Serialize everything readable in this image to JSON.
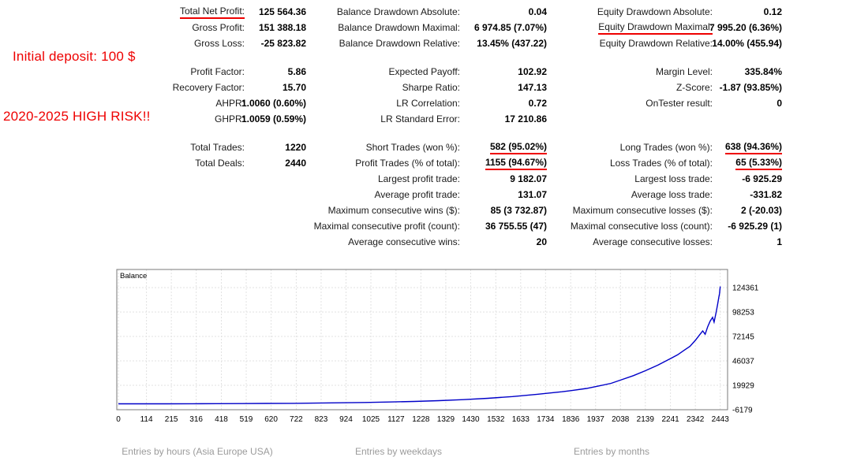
{
  "annotations": {
    "initial_deposit": "Initial deposit: 100 $",
    "risk_note": "2020-2025 HIGH RISK!!"
  },
  "stat_blocks": [
    {
      "rows": [
        [
          {
            "label": "Total Net Profit:",
            "value": "125 564.36",
            "ul": "label"
          },
          {
            "label": "Balance Drawdown Absolute:",
            "value": "0.04"
          },
          {
            "label": "Equity Drawdown Absolute:",
            "value": "0.12"
          }
        ],
        [
          {
            "label": "Gross Profit:",
            "value": "151 388.18"
          },
          {
            "label": "Balance Drawdown Maximal:",
            "value": "6 974.85 (7.07%)"
          },
          {
            "label": "Equity Drawdown Maximal:",
            "value": "7 995.20 (6.36%)",
            "ul": "label"
          }
        ],
        [
          {
            "label": "Gross Loss:",
            "value": "-25 823.82"
          },
          {
            "label": "Balance Drawdown Relative:",
            "value": "13.45% (437.22)"
          },
          {
            "label": "Equity Drawdown Relative:",
            "value": "14.00% (455.94)"
          }
        ]
      ]
    },
    {
      "rows": [
        [
          {
            "label": "Profit Factor:",
            "value": "5.86"
          },
          {
            "label": "Expected Payoff:",
            "value": "102.92"
          },
          {
            "label": "Margin Level:",
            "value": "335.84%"
          }
        ],
        [
          {
            "label": "Recovery Factor:",
            "value": "15.70"
          },
          {
            "label": "Sharpe Ratio:",
            "value": "147.13"
          },
          {
            "label": "Z-Score:",
            "value": "-1.87 (93.85%)"
          }
        ],
        [
          {
            "label": "AHPR:",
            "value": "1.0060 (0.60%)"
          },
          {
            "label": "LR Correlation:",
            "value": "0.72"
          },
          {
            "label": "OnTester result:",
            "value": "0"
          }
        ],
        [
          {
            "label": "GHPR:",
            "value": "1.0059 (0.59%)"
          },
          {
            "label": "LR Standard Error:",
            "value": "17 210.86"
          },
          null
        ]
      ]
    },
    {
      "rows": [
        [
          {
            "label": "Total Trades:",
            "value": "1220"
          },
          {
            "label": "Short Trades (won %):",
            "value": "582 (95.02%)",
            "ul": "value"
          },
          {
            "label": "Long Trades (won %):",
            "value": "638 (94.36%)",
            "ul": "value"
          }
        ],
        [
          {
            "label": "Total Deals:",
            "value": "2440"
          },
          {
            "label": "Profit Trades (% of total):",
            "value": "1155 (94.67%)",
            "ul": "value"
          },
          {
            "label": "Loss Trades (% of total):",
            "value": "65 (5.33%)",
            "ul": "value"
          }
        ],
        [
          null,
          {
            "label": "Largest profit trade:",
            "value": "9 182.07"
          },
          {
            "label": "Largest loss trade:",
            "value": "-6 925.29"
          }
        ],
        [
          null,
          {
            "label": "Average profit trade:",
            "value": "131.07"
          },
          {
            "label": "Average loss trade:",
            "value": "-331.82"
          }
        ],
        [
          null,
          {
            "label": "Maximum consecutive wins ($):",
            "value": "85 (3 732.87)"
          },
          {
            "label": "Maximum consecutive losses ($):",
            "value": "2 (-20.03)"
          }
        ],
        [
          null,
          {
            "label": "Maximal consecutive profit (count):",
            "value": "36 755.55 (47)"
          },
          {
            "label": "Maximal consecutive loss (count):",
            "value": "-6 925.29 (1)"
          }
        ],
        [
          null,
          {
            "label": "Average consecutive wins:",
            "value": "20"
          },
          {
            "label": "Average consecutive losses:",
            "value": "1"
          }
        ]
      ]
    }
  ],
  "chart_data": {
    "type": "line",
    "title": "Balance",
    "line_color": "#0000C8",
    "grid": true,
    "legend_position": "top-left-inside",
    "xlim": [
      0,
      2460
    ],
    "ylim": [
      -6179,
      143732
    ],
    "x_ticks": [
      0,
      114,
      215,
      316,
      418,
      519,
      620,
      722,
      823,
      924,
      1025,
      1127,
      1228,
      1329,
      1430,
      1532,
      1633,
      1734,
      1836,
      1937,
      2038,
      2139,
      2241,
      2342,
      2443
    ],
    "y_ticks": [
      124361,
      98253,
      72145,
      46037,
      19929,
      -6179
    ],
    "series": [
      {
        "name": "Balance",
        "points": [
          [
            0,
            100
          ],
          [
            100,
            130
          ],
          [
            200,
            170
          ],
          [
            300,
            230
          ],
          [
            400,
            300
          ],
          [
            500,
            400
          ],
          [
            600,
            520
          ],
          [
            700,
            680
          ],
          [
            800,
            900
          ],
          [
            900,
            1200
          ],
          [
            1000,
            1560
          ],
          [
            1100,
            2050
          ],
          [
            1200,
            2700
          ],
          [
            1300,
            3500
          ],
          [
            1400,
            4600
          ],
          [
            1500,
            6000
          ],
          [
            1600,
            7900
          ],
          [
            1700,
            10300
          ],
          [
            1800,
            13000
          ],
          [
            1836,
            14200
          ],
          [
            1900,
            16600
          ],
          [
            1960,
            19800
          ],
          [
            2000,
            22000
          ],
          [
            2038,
            25500
          ],
          [
            2090,
            30200
          ],
          [
            2139,
            35500
          ],
          [
            2190,
            41500
          ],
          [
            2241,
            48500
          ],
          [
            2270,
            52500
          ],
          [
            2300,
            58000
          ],
          [
            2320,
            61500
          ],
          [
            2342,
            68000
          ],
          [
            2358,
            73500
          ],
          [
            2372,
            78000
          ],
          [
            2382,
            74500
          ],
          [
            2392,
            82500
          ],
          [
            2402,
            88500
          ],
          [
            2412,
            92500
          ],
          [
            2418,
            87500
          ],
          [
            2426,
            97500
          ],
          [
            2432,
            106000
          ],
          [
            2437,
            113500
          ],
          [
            2440,
            118000
          ],
          [
            2443,
            125564
          ]
        ]
      }
    ]
  },
  "footer_sections": [
    "Entries by hours (Asia Europe USA)",
    "Entries by weekdays",
    "Entries by months"
  ]
}
